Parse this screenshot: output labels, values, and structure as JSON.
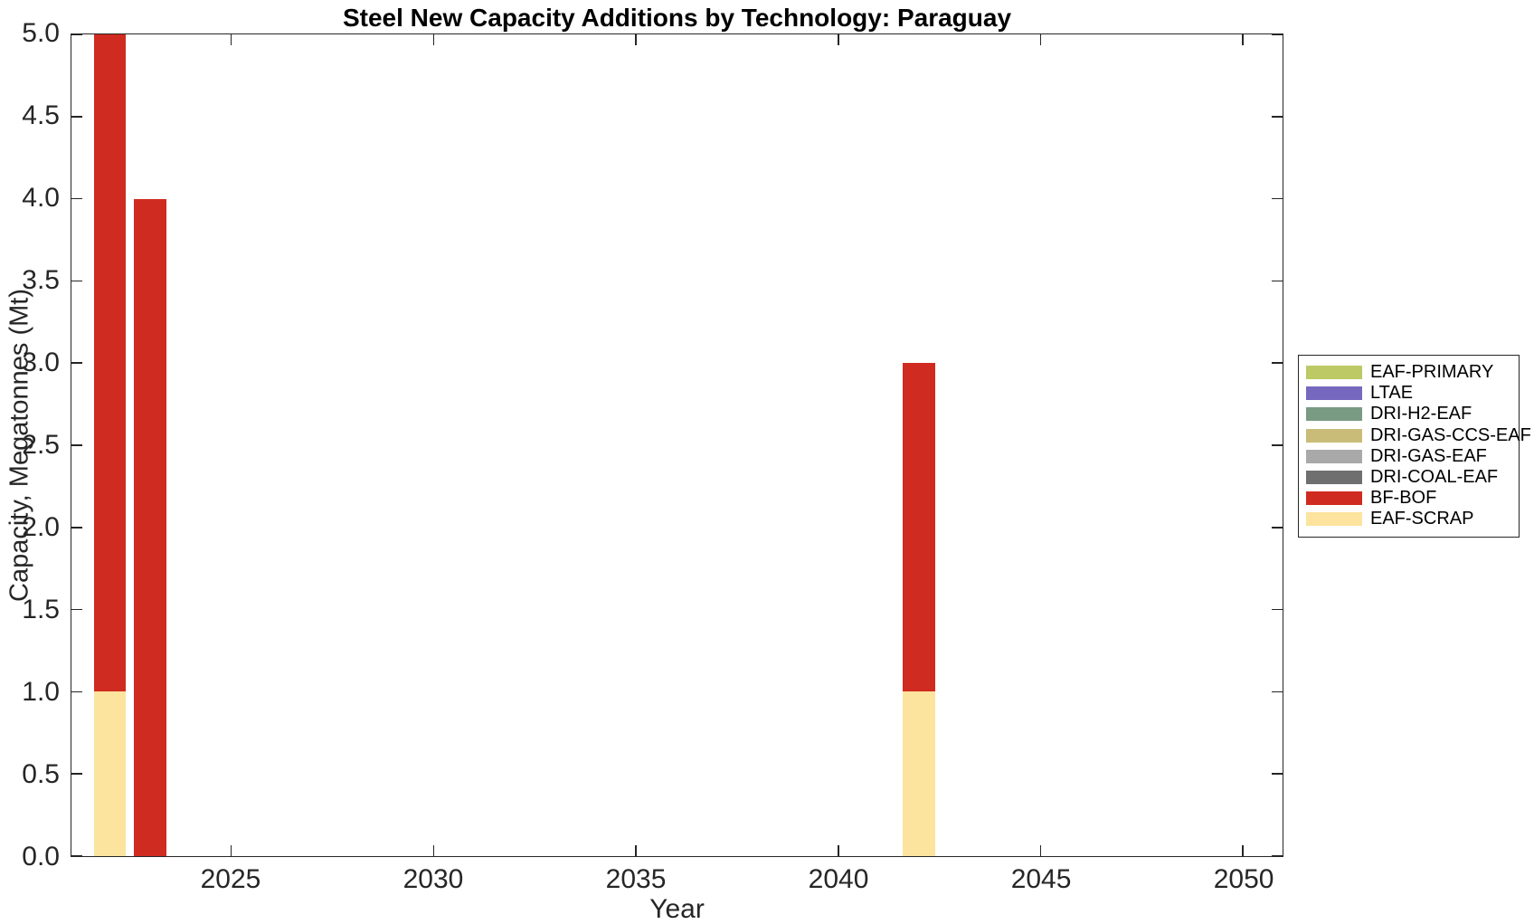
{
  "chart_data": {
    "type": "bar",
    "stacked": true,
    "title": "Steel New Capacity Additions by Technology: Paraguay",
    "xlabel": "Year",
    "ylabel": "Capacity, Megatonnes (Mt)",
    "xlim": [
      2021.05,
      2050.98
    ],
    "ylim": [
      0,
      5
    ],
    "x_ticks": [
      2025,
      2030,
      2035,
      2040,
      2045,
      2050
    ],
    "y_ticks": [
      0,
      0.5,
      1,
      1.5,
      2,
      2.5,
      3,
      3.5,
      4,
      4.5,
      5
    ],
    "y_tick_labels": [
      "0.0",
      "0.5",
      "1.0",
      "1.5",
      "2.0",
      "2.5",
      "3.0",
      "3.5",
      "4.0",
      "4.5",
      "5.0"
    ],
    "grid": false,
    "legend_position": "outside-right",
    "bar_width_years": 0.8,
    "stack_order": "bottom-to-top is reverse of series list (EAF-SCRAP at bottom, then BF-BOF, etc.)",
    "x": [
      2022,
      2023,
      2042
    ],
    "bar_totals": [
      5.0,
      4.0,
      3.0
    ],
    "series": [
      {
        "name": "EAF-PRIMARY",
        "color": "#bcc964",
        "values": [
          0,
          0,
          0
        ]
      },
      {
        "name": "LTAE",
        "color": "#7668be",
        "values": [
          0,
          0,
          0
        ]
      },
      {
        "name": "DRI-H2-EAF",
        "color": "#799b84",
        "values": [
          0,
          0,
          0
        ]
      },
      {
        "name": "DRI-GAS-CCS-EAF",
        "color": "#c9bc79",
        "values": [
          0,
          0,
          0
        ]
      },
      {
        "name": "DRI-GAS-EAF",
        "color": "#a9a9a9",
        "values": [
          0,
          0,
          0
        ]
      },
      {
        "name": "DRI-COAL-EAF",
        "color": "#6f6f6f",
        "values": [
          0,
          0,
          0
        ]
      },
      {
        "name": "BF-BOF",
        "color": "#d02b20",
        "values": [
          4,
          4,
          2
        ]
      },
      {
        "name": "EAF-SCRAP",
        "color": "#fce49e",
        "values": [
          1,
          0,
          1
        ]
      }
    ],
    "axis_color": "#262626",
    "background_color": "#ffffff"
  }
}
